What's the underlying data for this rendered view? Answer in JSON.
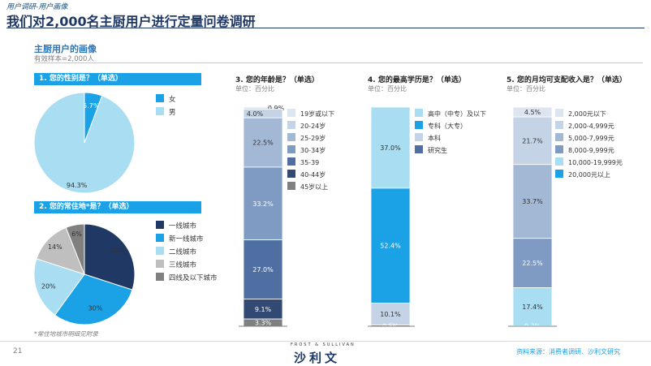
{
  "header": {
    "breadcrumb": "用户调研-用户画像",
    "title": "我们对2,000名主厨用户进行定量问卷调研"
  },
  "section": {
    "title": "主厨用户的画像",
    "subtitle": "有效样本=2,000人"
  },
  "questions": {
    "q1": "1. 您的性别是？（单选）",
    "q2": "2. 您的常住地*是？（单选）",
    "q3": "3. 您的年龄是？（单选）",
    "q4": "4. 您的最高学历是？（单选）",
    "q5": "5. 您的月均可支配收入是？（单选）"
  },
  "unit_label": "单位：百分比",
  "footnote": "*常住地城市明细见附录",
  "page_number": "21",
  "logo": {
    "top": "FROST & SULLIVAN",
    "cn": "沙利文"
  },
  "source": "资料来源：消费者调研、沙利文研究",
  "colors": {
    "accent": "#1aa1e6",
    "navy": "#1f3864"
  },
  "chart_data": [
    {
      "type": "pie",
      "name": "gender",
      "categories": [
        "女",
        "男"
      ],
      "values": [
        5.7,
        94.3
      ],
      "labels": [
        "5.7%",
        "94.3%"
      ],
      "colors": [
        "#1aa1e6",
        "#a8ddf2"
      ]
    },
    {
      "type": "pie",
      "name": "residence",
      "categories": [
        "一线城市",
        "新一线城市",
        "二线城市",
        "三线城市",
        "四线及以下城市"
      ],
      "values": [
        30,
        30,
        20,
        14,
        6
      ],
      "labels": [
        "30%",
        "30%",
        "20%",
        "14%",
        "6%"
      ],
      "colors": [
        "#1f3864",
        "#1aa1e6",
        "#a8ddf2",
        "#bfbfbf",
        "#808080"
      ]
    },
    {
      "type": "bar",
      "stacked": true,
      "name": "age",
      "categories": [
        "19岁或以下",
        "20-24岁",
        "25-29岁",
        "30-34岁",
        "35-39",
        "40-44岁",
        "45岁以上"
      ],
      "values": [
        0.9,
        4.0,
        22.5,
        33.2,
        27.0,
        9.1,
        3.3
      ],
      "labels": [
        "0.9%",
        "4.0%",
        "22.5%",
        "33.2%",
        "27.0%",
        "9.1%",
        "3.3%"
      ],
      "colors": [
        "#dde6f0",
        "#c5d3e6",
        "#a3b8d4",
        "#7f9bc3",
        "#4f6fa3",
        "#324a73",
        "#808080"
      ]
    },
    {
      "type": "bar",
      "stacked": true,
      "name": "education",
      "categories": [
        "高中（中专）及以下",
        "专科（大专）",
        "本科",
        "研究生"
      ],
      "values": [
        37.0,
        52.4,
        10.1,
        0.5
      ],
      "labels": [
        "37.0%",
        "52.4%",
        "10.1%",
        "0.5%"
      ],
      "colors": [
        "#a8ddf2",
        "#1aa1e6",
        "#c5d3e6",
        "#4f6fa3"
      ]
    },
    {
      "type": "bar",
      "stacked": true,
      "name": "income",
      "categories": [
        "2,000元以下",
        "2,000-4,999元",
        "5,000-7,999元",
        "8,000-9,999元",
        "10,000-19,999元",
        "20,000元以上"
      ],
      "values": [
        4.5,
        21.7,
        33.7,
        22.5,
        17.4,
        0.2
      ],
      "labels": [
        "4.5%",
        "21.7%",
        "33.7%",
        "22.5%",
        "17.4%",
        "0.2%"
      ],
      "colors": [
        "#dde6f0",
        "#c5d3e6",
        "#a3b8d4",
        "#7f9bc3",
        "#a8ddf2",
        "#1aa1e6"
      ]
    }
  ]
}
